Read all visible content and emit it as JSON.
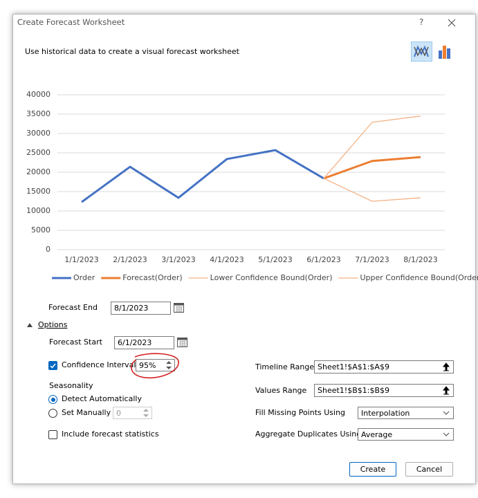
{
  "dialog": {
    "title": "Create Forecast Worksheet",
    "help": "?"
  },
  "description": "Use historical data to create a visual forecast worksheet",
  "chart_data": {
    "type": "line",
    "categories": [
      "1/1/2023",
      "2/1/2023",
      "3/1/2023",
      "4/1/2023",
      "5/1/2023",
      "6/1/2023",
      "7/1/2023",
      "8/1/2023"
    ],
    "series": [
      {
        "name": "Order",
        "color": "#4472c4",
        "width": 3,
        "values": [
          12300,
          21400,
          13400,
          23400,
          25700,
          18400,
          null,
          null
        ]
      },
      {
        "name": "Forecast(Order)",
        "color": "#ed7d31",
        "width": 3,
        "values": [
          null,
          null,
          null,
          null,
          null,
          18400,
          22900,
          23900
        ]
      },
      {
        "name": "Lower Confidence Bound(Order)",
        "color": "#f4b183",
        "width": 1.3,
        "values": [
          null,
          null,
          null,
          null,
          null,
          18400,
          12500,
          13400
        ]
      },
      {
        "name": "Upper Confidence Bound(Order)",
        "color": "#f4b183",
        "width": 1.3,
        "values": [
          null,
          null,
          null,
          null,
          null,
          18400,
          32900,
          34500
        ]
      }
    ],
    "ylim": [
      0,
      40000
    ],
    "yticks": [
      0,
      5000,
      10000,
      15000,
      20000,
      25000,
      30000,
      35000,
      40000
    ],
    "grid": true,
    "legend": "bottom"
  },
  "form": {
    "forecast_end": {
      "label": "Forecast End",
      "value": "8/1/2023"
    },
    "options": "Options",
    "forecast_start": {
      "label": "Forecast Start",
      "value": "6/1/2023"
    },
    "confidence_interval": {
      "label": "Confidence Interval",
      "value": "95%"
    },
    "seasonality": {
      "label": "Seasonality",
      "detect": "Detect Automatically",
      "manual": "Set Manually",
      "manual_value": "0"
    },
    "include_statistics": "Include forecast statistics",
    "timeline_range": {
      "label": "Timeline Range",
      "value": "Sheet1!$A$1:$A$9"
    },
    "values_range": {
      "label": "Values Range",
      "value": "Sheet1!$B$1:$B$9"
    },
    "fill_missing": {
      "label": "Fill Missing Points Using",
      "value": "Interpolation"
    },
    "aggregate": {
      "label": "Aggregate Duplicates Using",
      "value": "Average"
    },
    "buttons": {
      "create": "Create",
      "cancel": "Cancel"
    }
  }
}
